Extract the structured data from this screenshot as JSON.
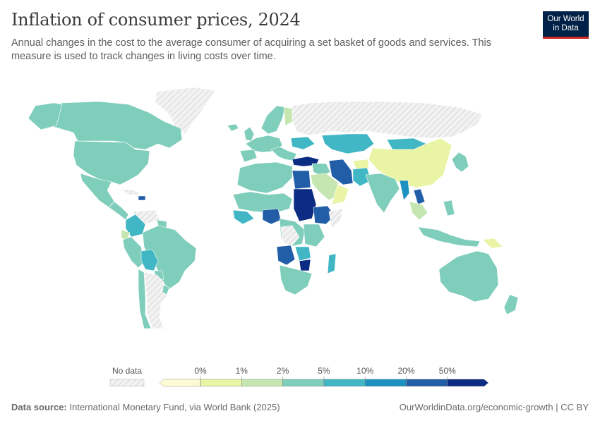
{
  "header": {
    "title": "Inflation of consumer prices, 2024",
    "subtitle": "Annual changes in the cost to the average consumer of acquiring a set basket of goods and services. This measure is used to track changes in living costs over time."
  },
  "logo": {
    "line1": "Our World",
    "line2": "in Data"
  },
  "legend": {
    "no_data_label": "No data",
    "ticks": [
      "0%",
      "1%",
      "2%",
      "5%",
      "10%",
      "20%",
      "50%"
    ],
    "bins": [
      {
        "color": "#fdfbd3"
      },
      {
        "color": "#eaf4a5"
      },
      {
        "color": "#c5e6b0"
      },
      {
        "color": "#7fcdbb"
      },
      {
        "color": "#41b6c4"
      },
      {
        "color": "#1d91c0"
      },
      {
        "color": "#225ea8"
      },
      {
        "color": "#0c2c84"
      }
    ]
  },
  "footer": {
    "source_label": "Data source:",
    "source_text": "International Monetary Fund, via World Bank (2025)",
    "url_text": "OurWorldinData.org/economic-growth | CC BY"
  },
  "colors": {
    "no_data": "#e6e6e6",
    "teal": "#7fcdbb",
    "cyan": "#41b6c4",
    "mid_blue": "#1d91c0",
    "blue": "#225ea8",
    "dark_blue": "#0c2c84",
    "pale_yellow": "#eaf4a5",
    "light_green": "#c5e6b0"
  }
}
